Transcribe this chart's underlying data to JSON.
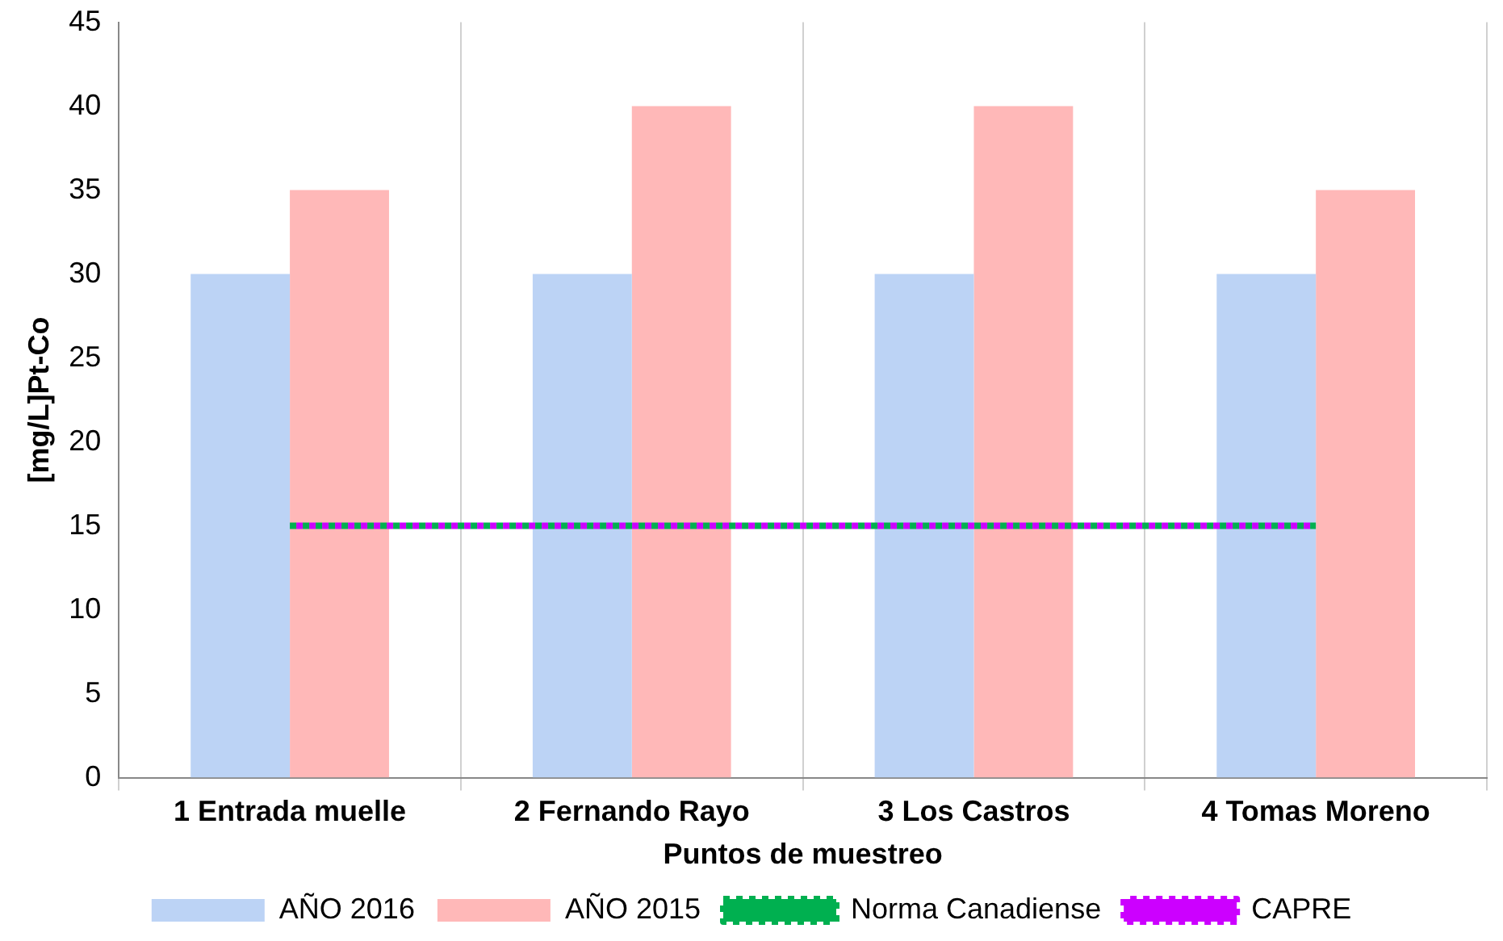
{
  "chart_data": {
    "type": "bar",
    "xlabel": "Puntos de muestreo",
    "ylabel": "[mg/L]Pt-Co",
    "categories": [
      "1 Entrada muelle",
      "2 Fernando Rayo",
      "3 Los Castros",
      "4 Tomas Moreno"
    ],
    "series": [
      {
        "name": "AÑO 2016",
        "color": "#bcd3f5",
        "values": [
          30,
          30,
          30,
          30
        ]
      },
      {
        "name": "AÑO 2015",
        "color": "#ffb8b8",
        "values": [
          35,
          40,
          40,
          35
        ]
      },
      {
        "name": "Norma Canadiense",
        "type": "line",
        "color": "#00b050",
        "line_style": "dotted",
        "marker": "none",
        "values": [
          15,
          15,
          15,
          15
        ]
      },
      {
        "name": "CAPRE",
        "type": "line",
        "color": "#cc00ff",
        "line_style": "dotted",
        "marker": "none",
        "values": [
          15,
          15,
          15,
          15
        ]
      }
    ],
    "ylim": [
      0,
      45
    ],
    "yticks": [
      0,
      5,
      10,
      15,
      20,
      25,
      30,
      35,
      40,
      45
    ],
    "grid": "x",
    "legend": "bottom"
  }
}
